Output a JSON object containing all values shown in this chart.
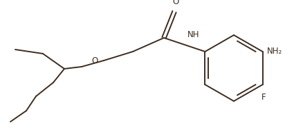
{
  "bond_color": "#3d2b1f",
  "bg_color": "#ffffff",
  "line_width": 1.4,
  "font_size": 8.5,
  "fig_width": 4.25,
  "fig_height": 1.89,
  "dpi": 100,
  "xlim": [
    0,
    425
  ],
  "ylim": [
    0,
    189
  ]
}
